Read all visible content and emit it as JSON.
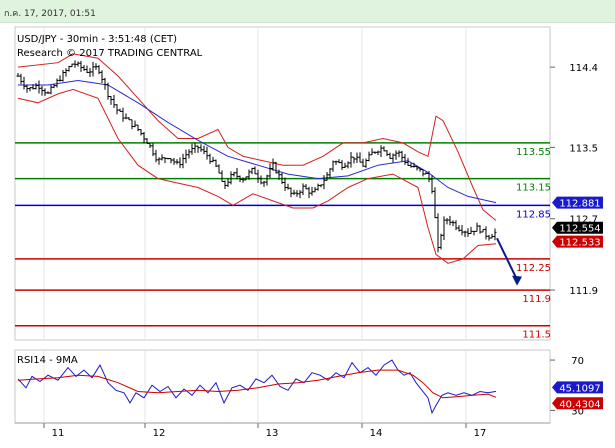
{
  "header": {
    "timestamp": "ก.ค. 17, 2017, 01:51"
  },
  "chart_data": [
    {
      "type": "candlestick",
      "title": "USD/JPY - 30min - 3:51:48 (CET)",
      "subtitle": "Research © 2017 TRADING CENTRAL",
      "x_tick_labels": [
        "11",
        "12",
        "13",
        "14",
        "17"
      ],
      "y_ticks": [
        114.4,
        113.5,
        112.7,
        111.9
      ],
      "ylim": [
        111.34,
        114.85
      ],
      "levels": [
        {
          "label": "113.55",
          "value": 113.55,
          "color": "#008000"
        },
        {
          "label": "113.15",
          "value": 113.15,
          "color": "#008000"
        },
        {
          "label": "112.85",
          "value": 112.85,
          "color": "#0000cc"
        },
        {
          "label": "112.25",
          "value": 112.25,
          "color": "#cc0000"
        },
        {
          "label": "111.9",
          "value": 111.9,
          "color": "#cc0000"
        },
        {
          "label": "111.5",
          "value": 111.5,
          "color": "#cc0000"
        }
      ],
      "price_tags": [
        {
          "label": "112.881",
          "value": 112.881,
          "color": "#1a1acc"
        },
        {
          "label": "112.554",
          "value": 112.554,
          "color": "#000000"
        },
        {
          "label": "112.533",
          "value": 112.533,
          "color": "#cc0000"
        }
      ],
      "forecast_arrow": {
        "from": 112.48,
        "to": 111.95,
        "color": "#0a1a8c"
      },
      "price_path": [
        [
          0,
          114.3
        ],
        [
          10,
          114.15
        ],
        [
          20,
          114.2
        ],
        [
          30,
          114.1
        ],
        [
          40,
          114.25
        ],
        [
          55,
          114.45
        ],
        [
          70,
          114.35
        ],
        [
          80,
          114.4
        ],
        [
          90,
          114.1
        ],
        [
          100,
          113.9
        ],
        [
          110,
          113.8
        ],
        [
          120,
          113.7
        ],
        [
          130,
          113.55
        ],
        [
          140,
          113.35
        ],
        [
          150,
          113.4
        ],
        [
          160,
          113.3
        ],
        [
          170,
          113.45
        ],
        [
          180,
          113.5
        ],
        [
          190,
          113.4
        ],
        [
          200,
          113.25
        ],
        [
          205,
          113.05
        ],
        [
          215,
          113.2
        ],
        [
          225,
          113.15
        ],
        [
          235,
          113.25
        ],
        [
          245,
          113.1
        ],
        [
          255,
          113.3
        ],
        [
          265,
          113.1
        ],
        [
          275,
          112.95
        ],
        [
          285,
          113.05
        ],
        [
          295,
          112.98
        ],
        [
          300,
          113.05
        ],
        [
          310,
          113.2
        ],
        [
          315,
          113.35
        ],
        [
          325,
          113.3
        ],
        [
          335,
          113.4
        ],
        [
          345,
          113.3
        ],
        [
          355,
          113.45
        ],
        [
          365,
          113.5
        ],
        [
          372,
          113.4
        ],
        [
          380,
          113.45
        ],
        [
          390,
          113.3
        ],
        [
          400,
          113.25
        ],
        [
          410,
          113.18
        ],
        [
          415,
          113.0
        ],
        [
          418,
          112.55
        ],
        [
          420,
          112.35
        ],
        [
          425,
          112.65
        ],
        [
          430,
          112.7
        ],
        [
          440,
          112.6
        ],
        [
          450,
          112.55
        ],
        [
          460,
          112.6
        ],
        [
          470,
          112.5
        ],
        [
          478,
          112.55
        ]
      ],
      "upper_band": [
        [
          0,
          114.4
        ],
        [
          40,
          114.45
        ],
        [
          55,
          114.55
        ],
        [
          80,
          114.5
        ],
        [
          100,
          114.3
        ],
        [
          120,
          114.05
        ],
        [
          140,
          113.8
        ],
        [
          160,
          113.6
        ],
        [
          180,
          113.6
        ],
        [
          200,
          113.7
        ],
        [
          210,
          113.5
        ],
        [
          225,
          113.4
        ],
        [
          245,
          113.35
        ],
        [
          265,
          113.3
        ],
        [
          285,
          113.3
        ],
        [
          305,
          113.4
        ],
        [
          325,
          113.55
        ],
        [
          345,
          113.55
        ],
        [
          365,
          113.6
        ],
        [
          385,
          113.55
        ],
        [
          400,
          113.45
        ],
        [
          410,
          113.4
        ],
        [
          418,
          113.85
        ],
        [
          425,
          113.8
        ],
        [
          440,
          113.45
        ],
        [
          455,
          113.05
        ],
        [
          465,
          112.8
        ],
        [
          478,
          112.68
        ]
      ],
      "lower_band": [
        [
          0,
          114.05
        ],
        [
          20,
          114.0
        ],
        [
          40,
          114.1
        ],
        [
          55,
          114.15
        ],
        [
          80,
          114.05
        ],
        [
          100,
          113.6
        ],
        [
          120,
          113.3
        ],
        [
          140,
          113.15
        ],
        [
          160,
          113.1
        ],
        [
          180,
          113.05
        ],
        [
          200,
          112.95
        ],
        [
          215,
          112.85
        ],
        [
          235,
          112.98
        ],
        [
          255,
          112.9
        ],
        [
          275,
          112.82
        ],
        [
          295,
          112.82
        ],
        [
          310,
          112.9
        ],
        [
          330,
          113.05
        ],
        [
          350,
          113.15
        ],
        [
          375,
          113.2
        ],
        [
          400,
          113.05
        ],
        [
          410,
          112.6
        ],
        [
          418,
          112.3
        ],
        [
          430,
          112.2
        ],
        [
          445,
          112.25
        ],
        [
          460,
          112.4
        ],
        [
          478,
          112.42
        ]
      ],
      "moving_average": [
        [
          0,
          114.2
        ],
        [
          30,
          114.2
        ],
        [
          60,
          114.25
        ],
        [
          90,
          114.2
        ],
        [
          120,
          114.0
        ],
        [
          150,
          113.78
        ],
        [
          180,
          113.58
        ],
        [
          210,
          113.4
        ],
        [
          240,
          113.3
        ],
        [
          270,
          113.2
        ],
        [
          300,
          113.15
        ],
        [
          330,
          113.18
        ],
        [
          360,
          113.3
        ],
        [
          390,
          113.35
        ],
        [
          410,
          113.22
        ],
        [
          430,
          113.05
        ],
        [
          450,
          112.95
        ],
        [
          478,
          112.881
        ]
      ]
    },
    {
      "type": "line",
      "title": "RSI14 - 9MA",
      "y_ticks": [
        70,
        30
      ],
      "ylim": [
        20,
        78
      ],
      "value_tags": [
        {
          "label": "45.1097",
          "value": 45.1097,
          "color": "#1a1acc"
        },
        {
          "label": "40.4304",
          "value": 40.4304,
          "color": "#cc0000"
        }
      ],
      "series": [
        {
          "color": "#1a1acc",
          "values": [
            [
              0,
              55
            ],
            [
              8,
              48
            ],
            [
              14,
              57
            ],
            [
              22,
              53
            ],
            [
              30,
              58
            ],
            [
              40,
              54
            ],
            [
              50,
              64
            ],
            [
              58,
              57
            ],
            [
              66,
              62
            ],
            [
              74,
              56
            ],
            [
              82,
              66
            ],
            [
              90,
              52
            ],
            [
              98,
              46
            ],
            [
              106,
              44
            ],
            [
              112,
              36
            ],
            [
              118,
              44
            ],
            [
              126,
              40
            ],
            [
              134,
              50
            ],
            [
              142,
              45
            ],
            [
              150,
              49
            ],
            [
              158,
              40
            ],
            [
              166,
              47
            ],
            [
              174,
              42
            ],
            [
              182,
              50
            ],
            [
              190,
              44
            ],
            [
              198,
              52
            ],
            [
              206,
              36
            ],
            [
              214,
              48
            ],
            [
              222,
              50
            ],
            [
              230,
              46
            ],
            [
              238,
              55
            ],
            [
              246,
              52
            ],
            [
              254,
              58
            ],
            [
              262,
              49
            ],
            [
              270,
              46
            ],
            [
              278,
              55
            ],
            [
              286,
              52
            ],
            [
              294,
              60
            ],
            [
              302,
              58
            ],
            [
              310,
              54
            ],
            [
              318,
              60
            ],
            [
              326,
              56
            ],
            [
              334,
              68
            ],
            [
              342,
              60
            ],
            [
              350,
              64
            ],
            [
              358,
              58
            ],
            [
              366,
              66
            ],
            [
              374,
              70
            ],
            [
              380,
              62
            ],
            [
              386,
              58
            ],
            [
              392,
              60
            ],
            [
              398,
              52
            ],
            [
              404,
              46
            ],
            [
              410,
              40
            ],
            [
              414,
              28
            ],
            [
              418,
              34
            ],
            [
              424,
              42
            ],
            [
              430,
              44
            ],
            [
              438,
              42
            ],
            [
              446,
              44
            ],
            [
              454,
              42
            ],
            [
              462,
              45
            ],
            [
              470,
              44
            ],
            [
              478,
              45.1
            ]
          ]
        },
        {
          "color": "#cc0000",
          "values": [
            [
              0,
              54
            ],
            [
              20,
              55
            ],
            [
              40,
              56
            ],
            [
              60,
              58
            ],
            [
              80,
              57
            ],
            [
              100,
              52
            ],
            [
              120,
              45
            ],
            [
              140,
              44
            ],
            [
              160,
              45
            ],
            [
              180,
              46
            ],
            [
              200,
              45
            ],
            [
              220,
              46
            ],
            [
              240,
              48
            ],
            [
              260,
              51
            ],
            [
              280,
              52
            ],
            [
              300,
              54
            ],
            [
              320,
              57
            ],
            [
              340,
              60
            ],
            [
              360,
              62
            ],
            [
              380,
              62
            ],
            [
              395,
              58
            ],
            [
              405,
              52
            ],
            [
              415,
              44
            ],
            [
              425,
              40
            ],
            [
              440,
              41
            ],
            [
              455,
              42
            ],
            [
              470,
              43
            ],
            [
              478,
              40.43
            ]
          ]
        }
      ]
    }
  ]
}
